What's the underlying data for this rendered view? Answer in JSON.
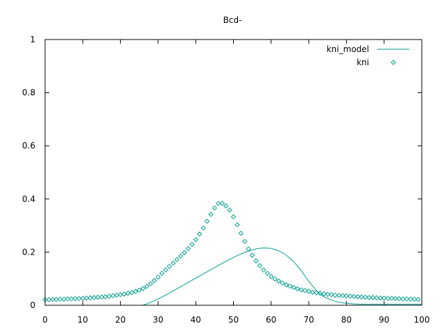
{
  "chart_data": {
    "type": "line",
    "title": "Bcd-",
    "xlabel": "",
    "ylabel": "",
    "xlim": [
      0,
      100
    ],
    "ylim": [
      0,
      1
    ],
    "xticks": [
      "0",
      "10",
      "20",
      "30",
      "40",
      "50",
      "60",
      "70",
      "80",
      "90",
      "100"
    ],
    "yticks": [
      "0",
      "0.2",
      "0.4",
      "0.6",
      "0.8",
      "1"
    ],
    "grid": false,
    "legend": "top-right",
    "series": [
      {
        "name": "kni_model",
        "style": "line",
        "color": "#009e8e",
        "x": [
          26,
          28,
          30,
          32,
          34,
          36,
          38,
          40,
          42,
          44,
          46,
          48,
          50,
          52,
          54,
          56,
          58,
          60,
          62,
          64,
          66,
          68,
          70,
          72,
          74,
          76,
          78,
          80,
          82,
          84,
          86,
          88,
          90,
          92,
          94,
          96,
          98,
          100
        ],
        "y": [
          0.0,
          0.011,
          0.024,
          0.038,
          0.054,
          0.07,
          0.086,
          0.102,
          0.118,
          0.134,
          0.15,
          0.165,
          0.18,
          0.193,
          0.204,
          0.212,
          0.216,
          0.214,
          0.205,
          0.189,
          0.164,
          0.13,
          0.09,
          0.055,
          0.032,
          0.019,
          0.011,
          0.007,
          0.005,
          0.004,
          0.004,
          0.004,
          0.004,
          0.004,
          0.004,
          0.004,
          0.004,
          0.004
        ]
      },
      {
        "name": "kni",
        "style": "points",
        "color": "#009e8e",
        "x": [
          0,
          1,
          2,
          3,
          4,
          5,
          6,
          7,
          8,
          9,
          10,
          11,
          12,
          13,
          14,
          15,
          16,
          17,
          18,
          19,
          20,
          21,
          22,
          23,
          24,
          25,
          26,
          27,
          28,
          29,
          30,
          31,
          32,
          33,
          34,
          35,
          36,
          37,
          38,
          39,
          40,
          41,
          42,
          43,
          44,
          45,
          46,
          47,
          48,
          49,
          50,
          51,
          52,
          53,
          54,
          55,
          56,
          57,
          58,
          59,
          60,
          61,
          62,
          63,
          64,
          65,
          66,
          67,
          68,
          69,
          70,
          71,
          72,
          73,
          74,
          75,
          76,
          77,
          78,
          79,
          80,
          81,
          82,
          83,
          84,
          85,
          86,
          87,
          88,
          89,
          90,
          91,
          92,
          93,
          94,
          95,
          96,
          97,
          98,
          99
        ],
        "y": [
          0.021,
          0.021,
          0.022,
          0.022,
          0.023,
          0.023,
          0.024,
          0.024,
          0.025,
          0.025,
          0.026,
          0.027,
          0.028,
          0.029,
          0.03,
          0.031,
          0.032,
          0.034,
          0.036,
          0.038,
          0.04,
          0.042,
          0.045,
          0.048,
          0.052,
          0.057,
          0.063,
          0.071,
          0.081,
          0.093,
          0.106,
          0.12,
          0.133,
          0.146,
          0.159,
          0.172,
          0.185,
          0.198,
          0.213,
          0.229,
          0.247,
          0.268,
          0.291,
          0.316,
          0.342,
          0.366,
          0.383,
          0.384,
          0.374,
          0.358,
          0.333,
          0.303,
          0.271,
          0.24,
          0.212,
          0.188,
          0.167,
          0.149,
          0.133,
          0.12,
          0.108,
          0.099,
          0.091,
          0.084,
          0.077,
          0.072,
          0.067,
          0.062,
          0.058,
          0.055,
          0.052,
          0.049,
          0.047,
          0.045,
          0.043,
          0.041,
          0.04,
          0.038,
          0.037,
          0.036,
          0.035,
          0.034,
          0.033,
          0.032,
          0.031,
          0.03,
          0.029,
          0.029,
          0.028,
          0.027,
          0.027,
          0.026,
          0.026,
          0.025,
          0.025,
          0.024,
          0.024,
          0.023,
          0.023,
          0.022
        ]
      }
    ]
  }
}
